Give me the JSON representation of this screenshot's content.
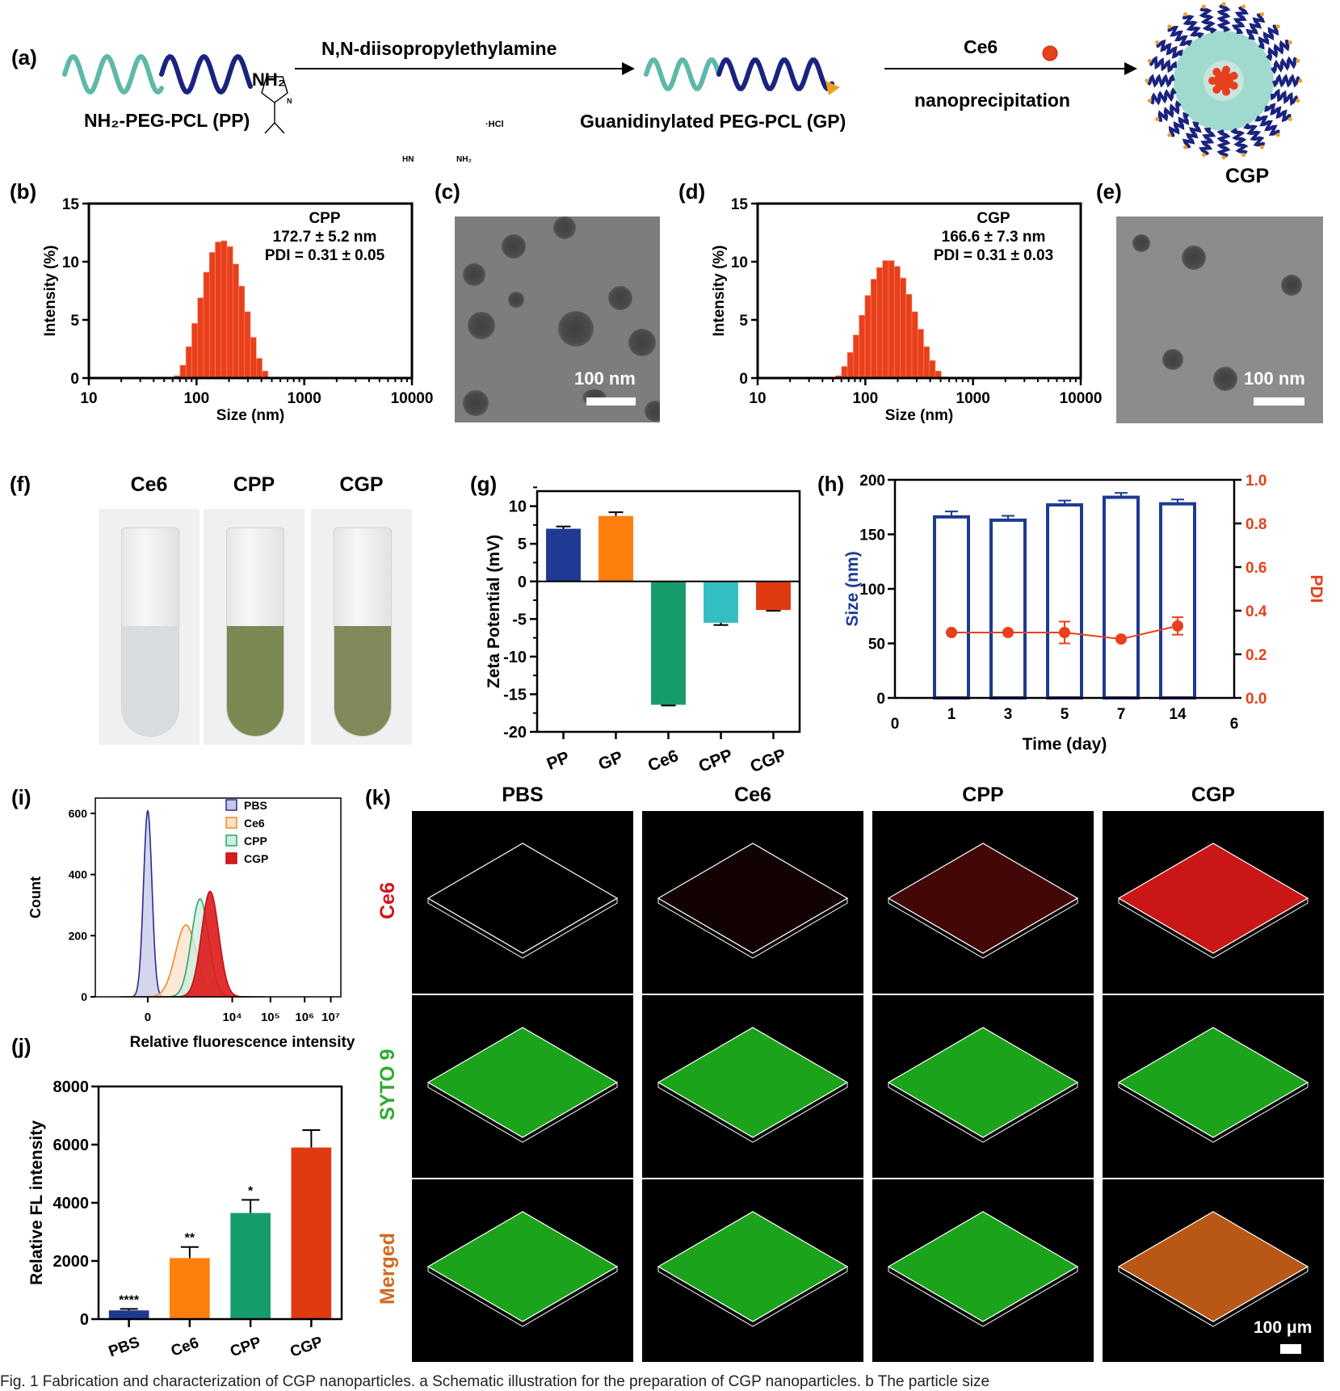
{
  "panel_labels": {
    "a": "(a)",
    "b": "(b)",
    "c": "(c)",
    "d": "(d)",
    "e": "(e)",
    "f": "(f)",
    "g": "(g)",
    "h": "(h)",
    "i": "(i)",
    "j": "(j)",
    "k": "(k)"
  },
  "scheme": {
    "pp_label": "NH₂-PEG-PCL  (PP)",
    "pp_end_group": "NH₂",
    "reagent_label": "N,N-diisopropylethylamine",
    "reagent_struct": {
      "n1": "N",
      "n2": "N",
      "hn": "HN",
      "nh2": "NH₂",
      "hcl": "·HCl"
    },
    "gp_label": "Guanidinylated PEG-PCL (GP)",
    "drug_label": "Ce6",
    "process_label": "nanoprecipitation",
    "product_label": "CGP",
    "colors": {
      "peg": "#5fb8a8",
      "pcl": "#1a237e",
      "ce6": "#e8401c",
      "guanidine": "#f0a020"
    }
  },
  "tem": {
    "c": {
      "scale_label": "100 nm"
    },
    "e": {
      "scale_label": "100 nm"
    }
  },
  "photos": {
    "f": {
      "tubes": [
        {
          "label": "Ce6",
          "liquid_color": "#d9dcdf"
        },
        {
          "label": "CPP",
          "liquid_color": "#7b8a52"
        },
        {
          "label": "CGP",
          "liquid_color": "#7f8a58"
        }
      ]
    }
  },
  "confocal": {
    "columns": [
      "PBS",
      "Ce6",
      "CPP",
      "CGP"
    ],
    "rows": [
      {
        "label": "Ce6",
        "color": "#d0141a"
      },
      {
        "label": "SYTO 9",
        "color": "#2eaa2e"
      },
      {
        "label": "Merged",
        "color": "#d2691e"
      }
    ],
    "scale_label": "100 μm"
  },
  "chart_data": [
    {
      "id": "b",
      "type": "bar",
      "subtype": "histogram",
      "xscale": "log",
      "xlabel": "Size (nm)",
      "ylabel": "Intensity (%)",
      "xlim": [
        10,
        10000
      ],
      "ylim": [
        0,
        15
      ],
      "xticks": [
        "10",
        "100",
        "1000",
        "10000"
      ],
      "yticks": [
        "0",
        "5",
        "10",
        "15"
      ],
      "annotation": [
        "CPP",
        "172.7 ± 5.2 nm",
        "PDI = 0.31 ± 0.05"
      ],
      "bin_start": 62,
      "bin_ratio": 1.1336,
      "values": [
        0.2,
        1.1,
        2.7,
        4.7,
        6.9,
        9.1,
        10.8,
        11.7,
        11.8,
        11.3,
        9.8,
        7.9,
        5.7,
        3.5,
        1.7,
        0.6
      ],
      "color": "#e8401c"
    },
    {
      "id": "d",
      "type": "bar",
      "subtype": "histogram",
      "xscale": "log",
      "xlabel": "Size (nm)",
      "ylabel": "Intensity (%)",
      "xlim": [
        10,
        10000
      ],
      "ylim": [
        0,
        15
      ],
      "xticks": [
        "10",
        "100",
        "1000",
        "10000"
      ],
      "yticks": [
        "0",
        "5",
        "10",
        "15"
      ],
      "annotation": [
        "CGP",
        "166.6 ± 7.3 nm",
        "PDI = 0.31 ± 0.03"
      ],
      "bin_start": 53,
      "bin_ratio": 1.1336,
      "values": [
        0.2,
        1.0,
        2.2,
        3.7,
        5.4,
        7.1,
        8.5,
        9.5,
        10.1,
        10.1,
        9.6,
        8.6,
        7.2,
        5.7,
        4.2,
        2.7,
        1.5,
        0.6,
        0.1
      ],
      "color": "#e8401c"
    },
    {
      "id": "g",
      "type": "bar",
      "title": "",
      "xlabel": "",
      "ylabel": "Zeta Potential (mV)",
      "ylim": [
        -20,
        12
      ],
      "yticks": [
        "10",
        "5",
        "0",
        "-5",
        "-10",
        "-15",
        "-20"
      ],
      "categories": [
        "PP",
        "GP",
        "Ce6",
        "CPP",
        "CGP"
      ],
      "values": [
        7.0,
        8.7,
        -16.4,
        -5.5,
        -3.8
      ],
      "errors": [
        0.3,
        0.5,
        0.1,
        0.3,
        0.1
      ],
      "colors": [
        "#1f3a93",
        "#ff7f0e",
        "#169c6b",
        "#33bfc2",
        "#e03a10"
      ]
    },
    {
      "id": "h",
      "type": "bar",
      "xlabel": "Time (day)",
      "ylabel": "Size (nm)",
      "y2label": "PDI",
      "categories": [
        "1",
        "3",
        "5",
        "7",
        "14"
      ],
      "x_axis_extra_ticks": [
        "0",
        "6"
      ],
      "ylim": [
        0,
        200
      ],
      "y2lim": [
        0,
        1.0
      ],
      "yticks": [
        "0",
        "50",
        "100",
        "150",
        "200"
      ],
      "y2ticks": [
        "0.0",
        "0.2",
        "0.4",
        "0.6",
        "0.8",
        "1.0"
      ],
      "series": [
        {
          "name": "Size (nm)",
          "type": "bar",
          "values": [
            166,
            163,
            177,
            184,
            178
          ],
          "errors": [
            5,
            4,
            4,
            4,
            4
          ],
          "color": "#1f3a93"
        },
        {
          "name": "PDI",
          "type": "line",
          "axis": "right",
          "values": [
            0.3,
            0.3,
            0.3,
            0.27,
            0.33
          ],
          "errors": [
            0.0,
            0.0,
            0.05,
            0.0,
            0.04
          ],
          "color": "#e8401c"
        }
      ]
    },
    {
      "id": "i",
      "type": "area",
      "subtype": "flow-cytometry histogram",
      "xlabel": "Relative fluorescence intensity",
      "ylabel": "Count",
      "ylim": [
        0,
        650
      ],
      "yticks": [
        "0",
        "200",
        "400",
        "600"
      ],
      "xticks": [
        "0",
        "10⁴",
        "10⁵",
        "10⁶",
        "10⁷"
      ],
      "legend": "top-right",
      "series": [
        {
          "name": "PBS",
          "peak_x": 0.0,
          "peak": 610,
          "width": 0.22,
          "color": "#2a2d8c",
          "fill": "#c5c8e8"
        },
        {
          "name": "Ce6",
          "peak_x": 0.95,
          "peak": 235,
          "width": 0.55,
          "color": "#f08a2a",
          "fill": "#fbe0c8"
        },
        {
          "name": "CPP",
          "peak_x": 1.3,
          "peak": 320,
          "width": 0.45,
          "color": "#2aa56a",
          "fill": "#cdeedd"
        },
        {
          "name": "CGP",
          "peak_x": 1.55,
          "peak": 345,
          "width": 0.45,
          "color": "#b8141a",
          "fill": "#dd1a1a"
        }
      ]
    },
    {
      "id": "j",
      "type": "bar",
      "xlabel": "",
      "ylabel": "Relative FL intensity",
      "ylim": [
        0,
        8000
      ],
      "yticks": [
        "0",
        "2000",
        "4000",
        "6000",
        "8000"
      ],
      "categories": [
        "PBS",
        "Ce6",
        "CPP",
        "CGP"
      ],
      "values": [
        300,
        2100,
        3650,
        5900
      ],
      "errors": [
        50,
        380,
        450,
        600
      ],
      "significance": [
        "****",
        "**",
        "*",
        ""
      ],
      "colors": [
        "#1f3a93",
        "#ff7f0e",
        "#169c6b",
        "#e03a10"
      ]
    }
  ],
  "caption": "Fig. 1  Fabrication and characterization of CGP nanoparticles. a Schematic illustration for the preparation of CGP nanoparticles. b The particle size"
}
